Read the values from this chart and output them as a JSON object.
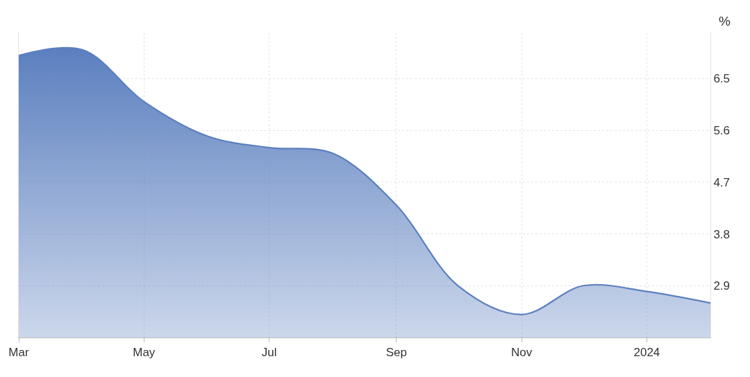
{
  "chart_data": {
    "type": "area",
    "ylabel": "%",
    "x": [
      "2023-03",
      "2023-04",
      "2023-05",
      "2023-06",
      "2023-07",
      "2023-08",
      "2023-09",
      "2023-10",
      "2023-11",
      "2023-12",
      "2024-01",
      "2024-02"
    ],
    "series": [
      {
        "color": "#5b7fbf",
        "values": [
          6.9,
          7.0,
          6.1,
          5.5,
          5.3,
          5.2,
          4.3,
          2.9,
          2.4,
          2.9,
          2.8,
          2.6
        ]
      }
    ],
    "xlim": [
      "2023-03",
      "2024-02"
    ],
    "xticks": [
      {
        "value": "2023-03",
        "label": "Mar"
      },
      {
        "value": "2023-05",
        "label": "May"
      },
      {
        "value": "2023-07",
        "label": "Jul"
      },
      {
        "value": "2023-09",
        "label": "Sep"
      },
      {
        "value": "2023-11",
        "label": "Nov"
      },
      {
        "value": "2024-01",
        "label": "2024"
      }
    ],
    "ylim": [
      2.0,
      7.3
    ],
    "yticks": [
      2.9,
      3.8,
      4.7,
      5.6,
      6.5
    ],
    "grid": true,
    "marker": "none",
    "line_style": "solid"
  }
}
